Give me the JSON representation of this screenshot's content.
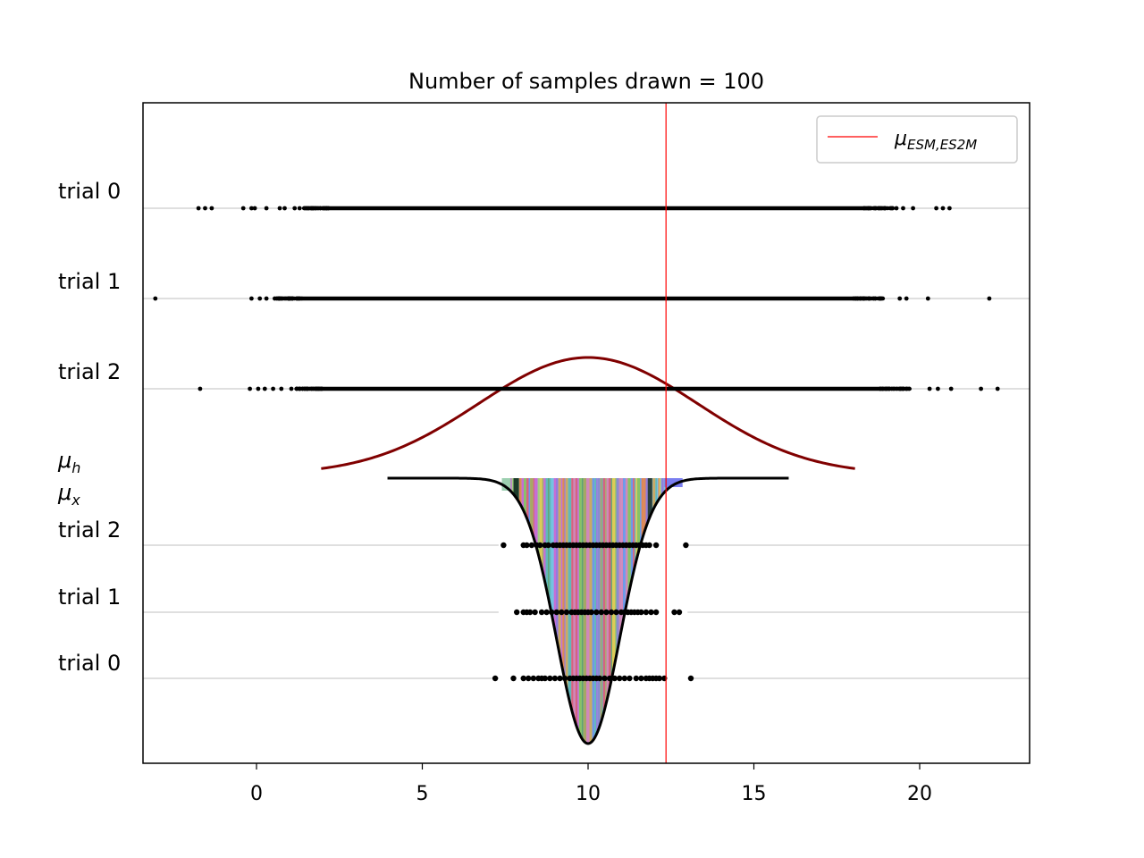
{
  "chart_data": {
    "type": "scatter",
    "title": "Number of samples drawn = 100",
    "xlabel": "",
    "ylabel": "",
    "xlim": [
      -3.45,
      23.3
    ],
    "xticks": [
      0,
      5,
      10,
      15,
      20
    ],
    "grid": "horizontal lines at each trial row",
    "legend": {
      "placement": "top-right",
      "entries": [
        {
          "name": "μ_ESM,ES2M",
          "color": "#ff0000",
          "style": "vertical-line"
        }
      ]
    },
    "reference_line": {
      "name": "μ_ESM,ES2M",
      "x": 12.35,
      "color": "#ff0000"
    },
    "upper_label": "μ_h",
    "lower_label": "μ_x",
    "upper_curve": {
      "description_label": "μ_h",
      "mean": 10,
      "sd": 3.3,
      "x_range": [
        1.95,
        18.05
      ],
      "color": "#800000"
    },
    "lower_curve": {
      "description_label": "μ_x",
      "mean": 10,
      "sd": 0.95,
      "x_range": [
        3.95,
        16.05
      ],
      "color": "#000000"
    },
    "upper_trials": [
      {
        "label": "trial 0",
        "min": -1.75,
        "max": 20.9,
        "sparse": [
          -1.75,
          -1.55,
          -1.35,
          -0.4,
          -0.15,
          -0.05,
          0.3,
          0.7,
          0.85,
          1.15,
          1.3,
          1.55,
          1.7,
          19.3,
          19.5,
          19.8,
          20.5,
          20.7,
          20.9
        ],
        "dense_range": [
          2.0,
          18.5
        ]
      },
      {
        "label": "trial 1",
        "min": -3.05,
        "max": 22.1,
        "sparse": [
          -3.05,
          -0.15,
          0.1,
          0.3,
          0.55,
          0.75,
          1.0,
          18.5,
          18.8,
          19.4,
          19.6,
          20.25,
          22.1
        ],
        "dense_range": [
          1.2,
          18.2
        ]
      },
      {
        "label": "trial 2",
        "min": -1.7,
        "max": 22.35,
        "sparse": [
          -1.7,
          -0.2,
          0.05,
          0.25,
          0.5,
          0.75,
          1.05,
          1.3,
          1.55,
          19.4,
          19.6,
          20.3,
          20.55,
          20.95,
          21.85,
          22.35
        ],
        "dense_range": [
          1.8,
          19.0
        ]
      }
    ],
    "lower_trials": [
      {
        "label": "trial 2",
        "values": [
          7.45,
          8.05,
          8.15,
          8.3,
          8.45,
          8.55,
          8.7,
          8.8,
          8.95,
          9.05,
          9.15,
          9.25,
          9.35,
          9.45,
          9.55,
          9.65,
          9.75,
          9.85,
          9.95,
          10.05,
          10.15,
          10.25,
          10.35,
          10.45,
          10.55,
          10.65,
          10.75,
          10.85,
          10.95,
          11.05,
          11.15,
          11.25,
          11.35,
          11.45,
          11.55,
          11.65,
          11.75,
          11.85,
          12.05,
          12.95
        ]
      },
      {
        "label": "trial 1",
        "values": [
          7.85,
          8.05,
          8.15,
          8.25,
          8.4,
          8.6,
          8.75,
          8.9,
          9.05,
          9.2,
          9.35,
          9.5,
          9.6,
          9.7,
          9.8,
          9.9,
          10.0,
          10.1,
          10.25,
          10.4,
          10.55,
          10.7,
          10.85,
          11.0,
          11.1,
          11.2,
          11.3,
          11.4,
          11.5,
          11.6,
          11.75,
          11.9,
          12.05,
          12.6,
          12.75
        ]
      },
      {
        "label": "trial 0",
        "values": [
          7.2,
          7.75,
          8.05,
          8.2,
          8.35,
          8.5,
          8.6,
          8.7,
          8.85,
          9.0,
          9.15,
          9.3,
          9.45,
          9.55,
          9.65,
          9.75,
          9.85,
          9.95,
          10.05,
          10.15,
          10.25,
          10.35,
          10.5,
          10.65,
          10.8,
          10.95,
          11.1,
          11.25,
          11.45,
          11.6,
          11.75,
          11.85,
          11.95,
          12.05,
          12.15,
          12.3,
          13.1
        ]
      }
    ],
    "y_labels_top_to_bottom": [
      "trial 0",
      "trial 1",
      "trial 2",
      "μ_h",
      "μ_x",
      "trial 2",
      "trial 1",
      "trial 0"
    ]
  }
}
